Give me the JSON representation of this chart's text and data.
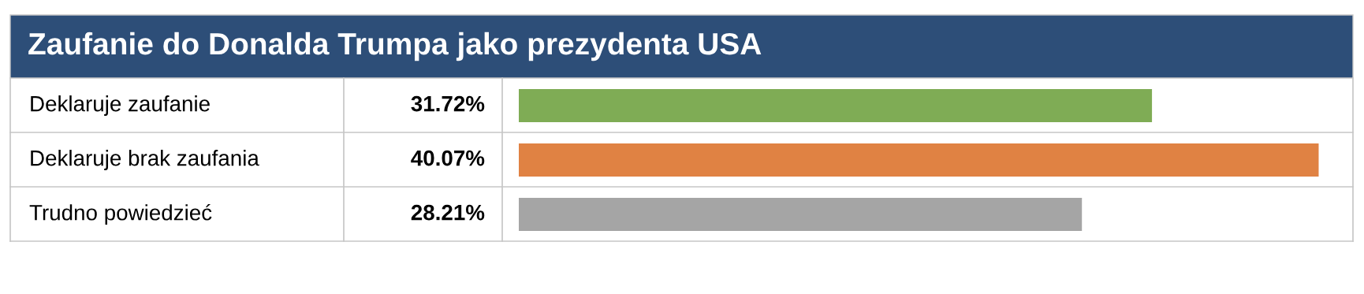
{
  "chart_data": {
    "type": "bar",
    "orientation": "horizontal",
    "title": "Zaufanie do Donalda Trumpa jako prezydenta USA",
    "categories": [
      "Deklaruje zaufanie",
      "Deklaruje brak zaufania",
      "Trudno powiedzieć"
    ],
    "values": [
      31.72,
      40.07,
      28.21
    ],
    "colors": [
      "#7fac55",
      "#e08243",
      "#a5a5a5"
    ],
    "value_labels": [
      "31.72%",
      "40.07%",
      "28.21%"
    ]
  }
}
